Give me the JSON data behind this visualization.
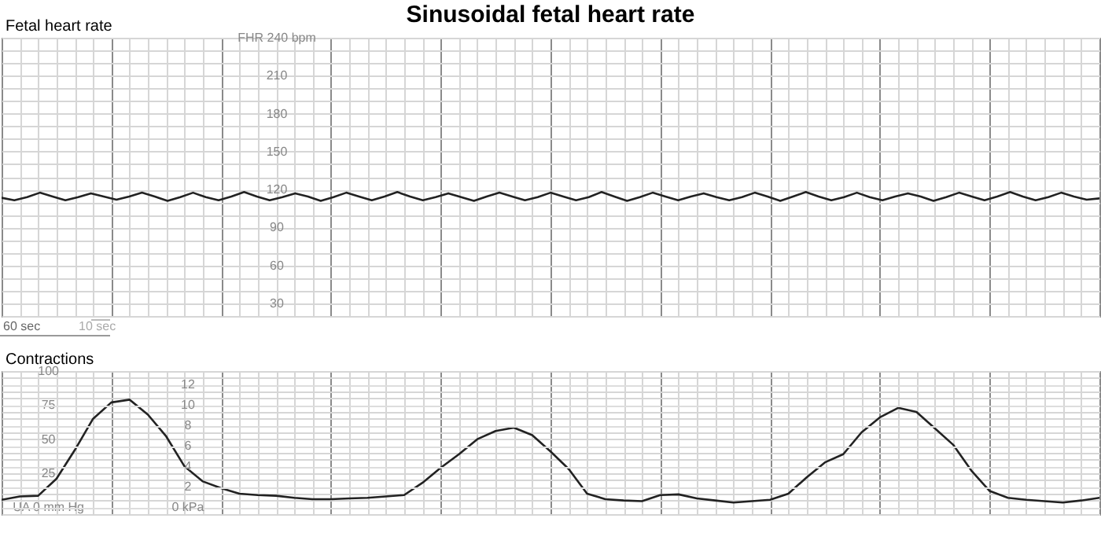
{
  "chart_data": [
    {
      "type": "line",
      "title": "Sinusoidal fetal heart rate",
      "ylabel": "Fetal heart rate",
      "categories": [
        null,
        null,
        null,
        null,
        null,
        null,
        null,
        null,
        null,
        null,
        null,
        null,
        null,
        null,
        null,
        null,
        null,
        null,
        null,
        null,
        null,
        null,
        null,
        null,
        null,
        null,
        null,
        null,
        null,
        null,
        null,
        null,
        null,
        null,
        null,
        null,
        null,
        null,
        null,
        null,
        null,
        null,
        null,
        null,
        null,
        null,
        null,
        null,
        null,
        null,
        null,
        null,
        null,
        null,
        null,
        null,
        null,
        null,
        null,
        null,
        null,
        null,
        null,
        null,
        null,
        null,
        null,
        null,
        null,
        null,
        null,
        null,
        null,
        null,
        null,
        null,
        null,
        null,
        null,
        null,
        null,
        null,
        null,
        null,
        null,
        null,
        null
      ],
      "series": [
        {
          "color": "#222222",
          "values": [
            113.5,
            111.5,
            114,
            117.5,
            114.5,
            111.5,
            114,
            117,
            114.5,
            112,
            114.5,
            117.5,
            114.5,
            111,
            114,
            117.5,
            114,
            111.5,
            114.5,
            118,
            114.5,
            111.5,
            114,
            117,
            114.5,
            111,
            114,
            117.5,
            114.5,
            111.5,
            114.5,
            118,
            114.5,
            111.5,
            114,
            117,
            114,
            111,
            114.5,
            117.5,
            114.5,
            111.5,
            114,
            117.5,
            114.5,
            111.5,
            114,
            118,
            114.5,
            111,
            114,
            117.5,
            114.5,
            111.5,
            114.5,
            117,
            114,
            111.5,
            114,
            117.5,
            114.5,
            111,
            114.5,
            118,
            114.5,
            111.5,
            114,
            117.5,
            114,
            111.5,
            114.5,
            117,
            114.5,
            111,
            114,
            117.5,
            114.5,
            111.5,
            114.5,
            118,
            114.5,
            111.5,
            114,
            117.5,
            114.5,
            112,
            113
          ]
        }
      ],
      "ylim": [
        20,
        240
      ],
      "yticks": [
        {
          "value": 20,
          "label": null
        },
        30,
        {
          "value": 40,
          "label": null
        },
        {
          "value": 50,
          "label": null
        },
        60,
        {
          "value": 70,
          "label": null
        },
        {
          "value": 80,
          "label": null
        },
        90,
        {
          "value": 100,
          "label": null
        },
        {
          "value": 110,
          "label": null
        },
        120,
        {
          "value": 130,
          "label": null
        },
        {
          "value": 140,
          "label": null
        },
        150,
        {
          "value": 160,
          "label": null
        },
        {
          "value": 170,
          "label": null
        },
        180,
        {
          "value": 190,
          "label": null
        },
        {
          "value": 200,
          "label": null
        },
        210,
        {
          "value": 220,
          "label": null
        },
        {
          "value": 230,
          "label": null
        },
        {
          "value": 240,
          "label": "FHR 240 bpm"
        }
      ],
      "grid": true,
      "tick_labels": "y",
      "annotations": [
        "60 sec",
        "10 sec"
      ]
    },
    {
      "type": "line",
      "ylabel": "Contractions",
      "categories": [
        null,
        null,
        null,
        null,
        null,
        null,
        null,
        null,
        null,
        null,
        null,
        null,
        null,
        null,
        null,
        null,
        null,
        null,
        null,
        null,
        null,
        null,
        null,
        null,
        null,
        null,
        null,
        null,
        null,
        null,
        null,
        null,
        null,
        null,
        null,
        null,
        null,
        null,
        null,
        null,
        null,
        null,
        null,
        null,
        null,
        null,
        null,
        null,
        null,
        null,
        null,
        null,
        null,
        null,
        null,
        null,
        null,
        null,
        null,
        null,
        null
      ],
      "series": [
        {
          "color": "#222222",
          "values": [
            5.5,
            8,
            8.5,
            21,
            42,
            65,
            77,
            79,
            68,
            52,
            30,
            19,
            14,
            10,
            9,
            8.5,
            7,
            6,
            6,
            6.5,
            7,
            8,
            9,
            18,
            29,
            39,
            50,
            56,
            58.5,
            53,
            41,
            28,
            10,
            6,
            5,
            4.5,
            9,
            9.5,
            6.5,
            5,
            3.5,
            4.5,
            5.5,
            10,
            22,
            33,
            39,
            55,
            66,
            73,
            70,
            58,
            46,
            27,
            12,
            7,
            5.5,
            4.5,
            3.5,
            5,
            7
          ]
        }
      ],
      "ylim": [
        -5,
        100
      ],
      "yticks": [
        {
          "value": -5,
          "label": null
        },
        {
          "value": 0,
          "label": "UA  0  mm Hg"
        },
        {
          "value": 5,
          "label": null
        },
        {
          "value": 10,
          "label": null
        },
        {
          "value": 15,
          "label": null
        },
        {
          "value": 20,
          "label": null
        },
        25,
        {
          "value": 30,
          "label": null
        },
        {
          "value": 35,
          "label": null
        },
        {
          "value": 40,
          "label": null
        },
        {
          "value": 45,
          "label": null
        },
        50,
        {
          "value": 55,
          "label": null
        },
        {
          "value": 60,
          "label": null
        },
        {
          "value": 65,
          "label": null
        },
        {
          "value": 70,
          "label": null
        },
        75,
        {
          "value": 80,
          "label": null
        },
        {
          "value": 85,
          "label": null
        },
        {
          "value": 90,
          "label": null
        },
        {
          "value": 95,
          "label": null
        },
        100
      ],
      "y2lim": [
        -0.67,
        13.33
      ],
      "y2ticks": [
        {
          "value": 0,
          "label": "0 kPa"
        },
        2,
        4,
        6,
        8,
        10,
        12
      ],
      "grid": true,
      "tick_labels": "y"
    }
  ]
}
